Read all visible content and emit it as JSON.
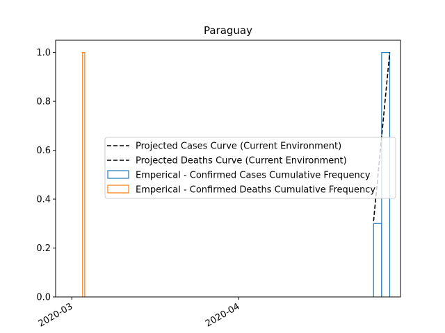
{
  "chart_data": {
    "type": "bar",
    "title": "Paraguay",
    "xlabel": "",
    "ylabel": "",
    "x_axis": {
      "type": "date",
      "range": [
        "2020-02-27",
        "2020-05-01"
      ],
      "ticks": [
        "2020-03-01",
        "2020-04-01"
      ],
      "tick_labels": [
        "2020-03",
        "2020-04"
      ],
      "tick_label_rotation": 30
    },
    "y_axis": {
      "range": [
        0,
        1.05
      ],
      "ticks": [
        0.0,
        0.2,
        0.4,
        0.6,
        0.8,
        1.0
      ],
      "tick_labels": [
        "0.0",
        "0.2",
        "0.4",
        "0.6",
        "0.8",
        "1.0"
      ]
    },
    "grid": false,
    "legend_placement": "center-right",
    "series": [
      {
        "name": "Projected Cases Curve (Current Environment)",
        "kind": "line",
        "style": "dashed",
        "color": "#000000",
        "points": [
          {
            "x": "2020-04-26",
            "y": 0.31
          },
          {
            "x": "2020-04-29",
            "y": 1.0
          }
        ]
      },
      {
        "name": "Projected Deaths Curve (Current Environment)",
        "kind": "line",
        "style": "dashed",
        "color": "#000000",
        "points": []
      },
      {
        "name": "Emperical - Confirmed Cases Cumulative Frequency",
        "kind": "step",
        "color": "#1f77b4",
        "bins": [
          {
            "start": "2020-04-26",
            "end": "2020-04-27.5",
            "value": 0.3
          },
          {
            "start": "2020-04-27.5",
            "end": "2020-04-29",
            "value": 1.0
          }
        ]
      },
      {
        "name": "Emperical - Confirmed Deaths Cumulative Frequency",
        "kind": "step",
        "color": "#ff7f0e",
        "bins": [
          {
            "start": "2020-03-03",
            "end": "2020-03-03.4",
            "value": 1.0
          }
        ]
      }
    ]
  }
}
